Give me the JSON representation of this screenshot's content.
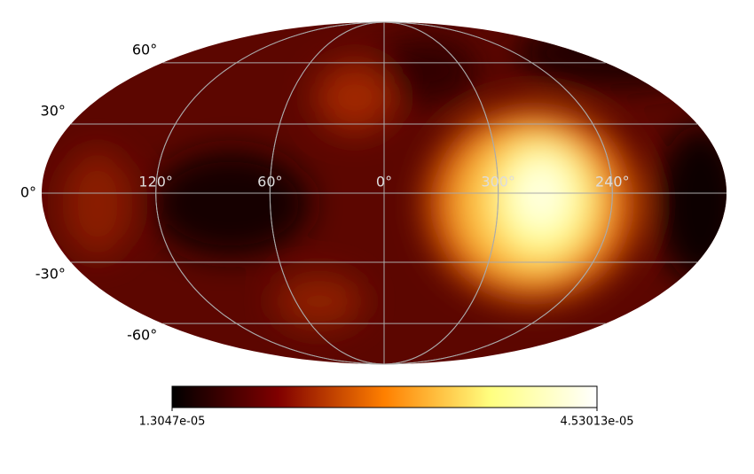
{
  "chart_data": {
    "type": "mollweide",
    "xticks": [
      {
        "value": 120,
        "label": "120°"
      },
      {
        "value": 60,
        "label": "60°"
      },
      {
        "value": 0,
        "label": "0°"
      },
      {
        "value": 300,
        "label": "300°"
      },
      {
        "value": 240,
        "label": "240°"
      }
    ],
    "yticks": [
      {
        "value": 60,
        "label": "60°"
      },
      {
        "value": 30,
        "label": "30°"
      },
      {
        "value": 0,
        "label": "0°"
      },
      {
        "value": -30,
        "label": "-30°"
      },
      {
        "value": -60,
        "label": "-60°"
      }
    ],
    "grid": true,
    "colorbar": {
      "cmap": "afmhot",
      "lim": [
        1.3047e-05,
        4.53013e-05
      ],
      "ticks": [
        {
          "value": 1.3047e-05,
          "label": "1.3047e-05"
        },
        {
          "value": 4.53013e-05,
          "label": "4.53013e-05"
        }
      ]
    }
  }
}
